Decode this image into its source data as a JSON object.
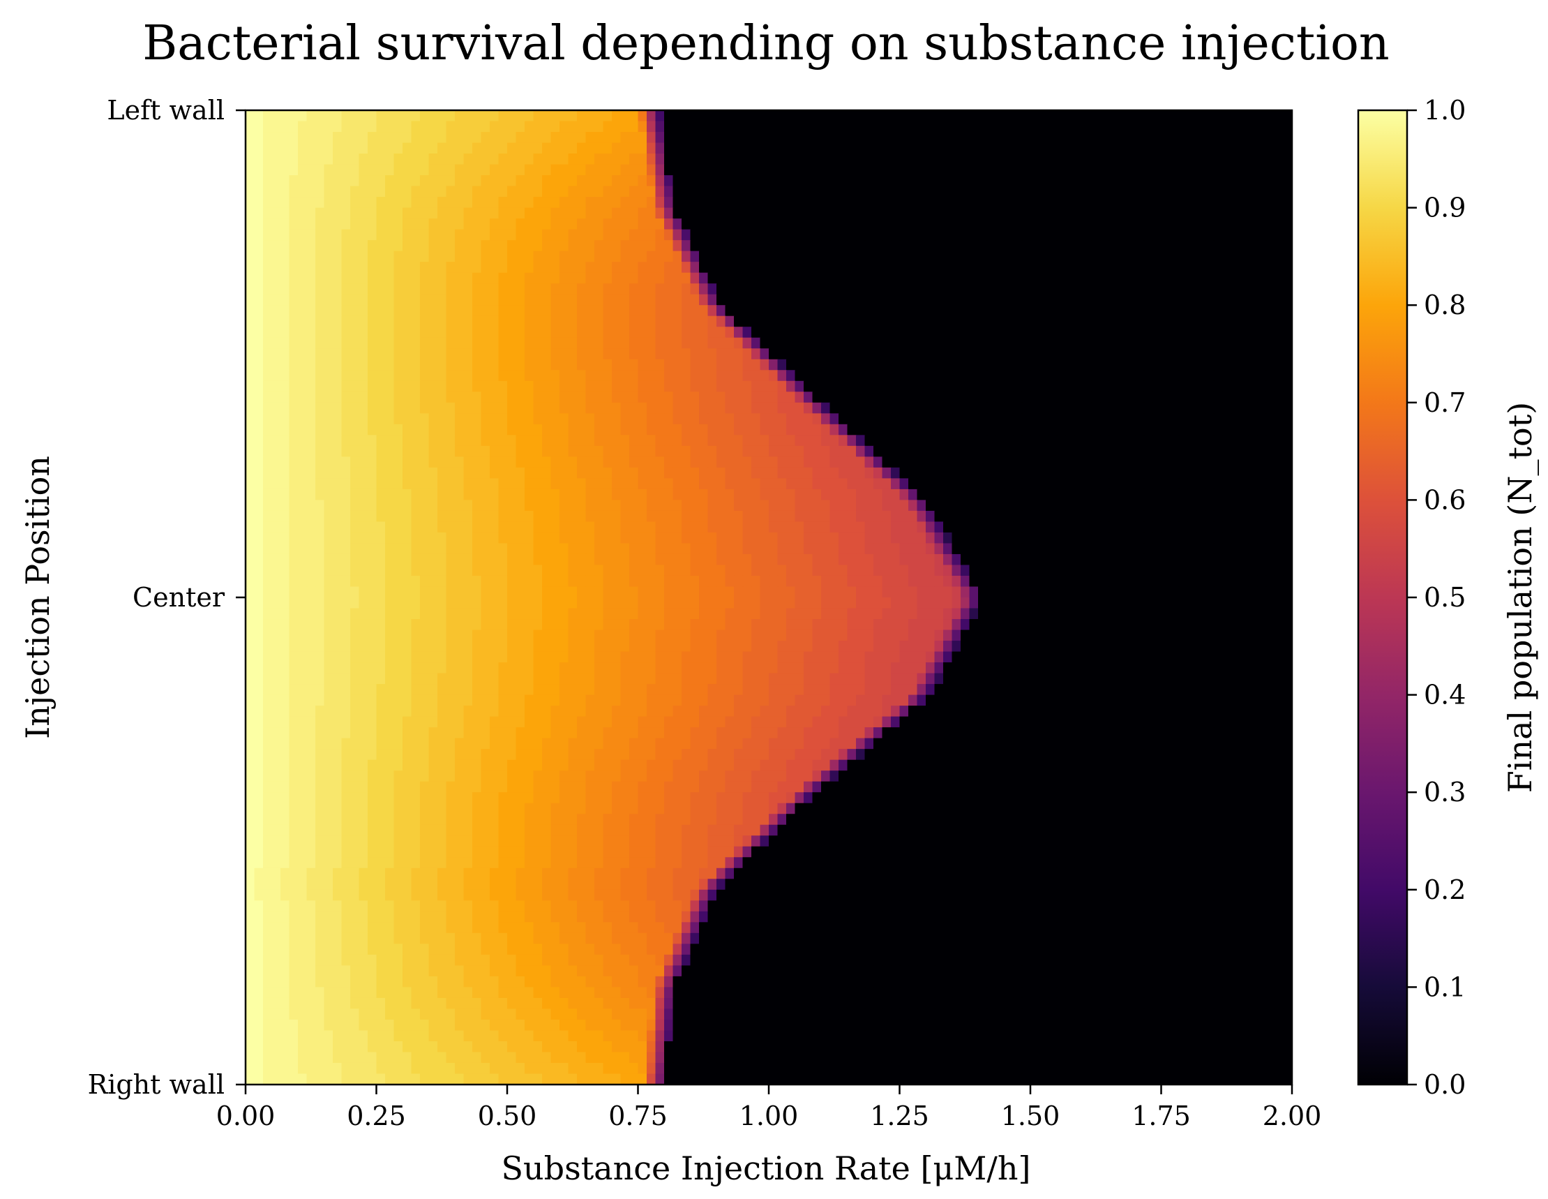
{
  "chart_data": {
    "type": "heatmap",
    "title": "Bacterial survival depending on substance injection",
    "xlabel": "Substance Injection Rate [μM/h]",
    "ylabel": "Injection Position",
    "xlim": [
      0.0,
      2.0
    ],
    "x_ticks": [
      "0.00",
      "0.25",
      "0.50",
      "0.75",
      "1.00",
      "1.25",
      "1.50",
      "1.75",
      "2.00"
    ],
    "y_ticks": [
      "Left wall",
      "Center",
      "Right wall"
    ],
    "colorbar": {
      "label": "Final population (N_tot)",
      "range": [
        0.0,
        1.0
      ],
      "ticks": [
        "0.0",
        "0.1",
        "0.2",
        "0.3",
        "0.4",
        "0.5",
        "0.6",
        "0.7",
        "0.8",
        "0.9",
        "1.0"
      ],
      "colormap": "inferno"
    },
    "survival_boundary": {
      "positions": [
        0.0,
        0.1,
        0.2,
        0.3,
        0.4,
        0.5,
        0.6,
        0.7,
        0.8,
        0.9,
        1.0
      ],
      "critical_rate": [
        0.79,
        0.82,
        0.91,
        1.1,
        1.3,
        1.41,
        1.31,
        1.09,
        0.9,
        0.82,
        0.8
      ]
    },
    "grid": false,
    "legend": "none"
  }
}
